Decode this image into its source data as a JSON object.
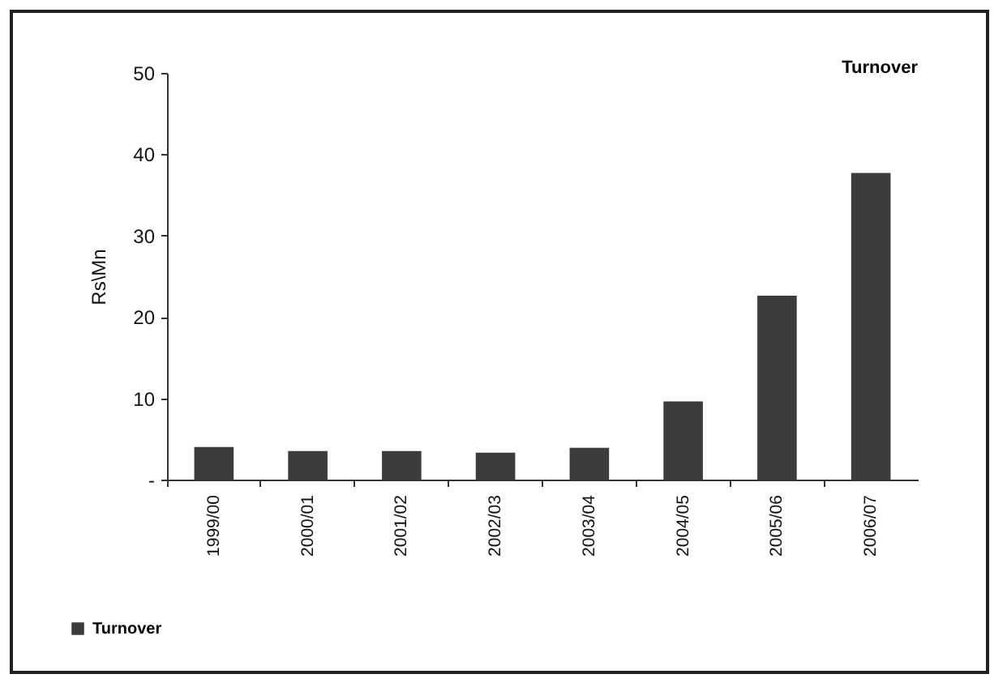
{
  "chart_data": {
    "type": "bar",
    "title": "Turnover",
    "ylabel": "Rs\\Mn",
    "categories": [
      "1999/00",
      "2000/01",
      "2001/02",
      "2002/03",
      "2003/04",
      "2004/05",
      "2005/06",
      "2006/07"
    ],
    "series": [
      {
        "name": "Turnover",
        "color": "#3c3c3c",
        "values": [
          4.0,
          3.5,
          3.5,
          3.3,
          3.9,
          9.6,
          22.6,
          37.7
        ]
      }
    ],
    "ylim": [
      0,
      50
    ],
    "yticks": [
      {
        "value": 0,
        "label": "-"
      },
      10,
      20,
      30,
      40,
      50
    ],
    "grid": false,
    "legend": "bottom left"
  }
}
